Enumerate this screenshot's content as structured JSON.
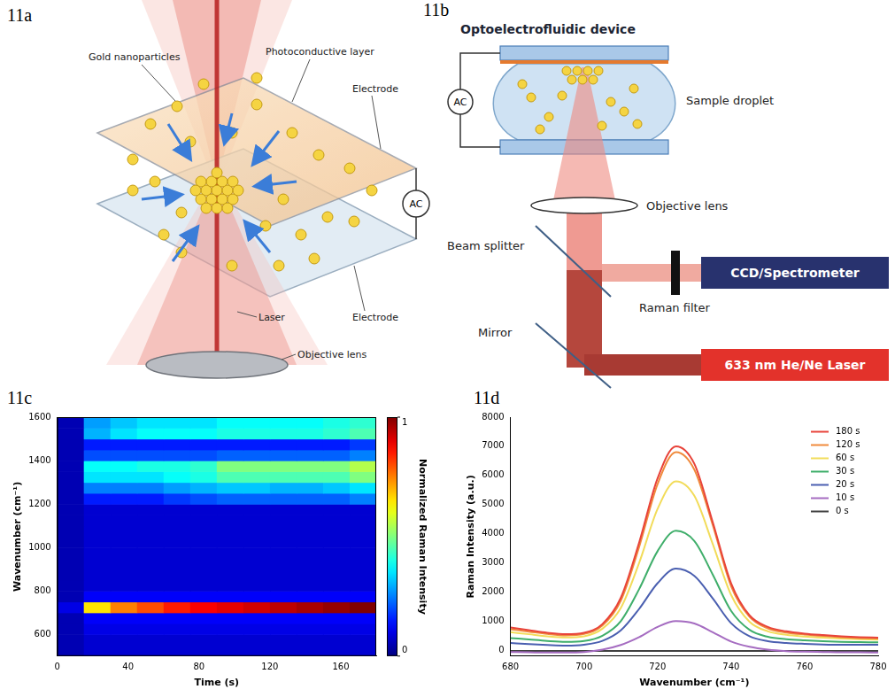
{
  "diagram_a": {
    "panel": "11a",
    "labels": {
      "nanoparticles": "Gold nanoparticles",
      "photoconductive": "Photoconductive layer",
      "electrode_top": "Electrode",
      "electrode_bottom": "Electrode",
      "source": "AC",
      "laser": "Laser",
      "lens": "Objective lens"
    }
  },
  "diagram_b": {
    "panel": "11b",
    "title": "Optoelectrofluidic device",
    "labels": {
      "source": "AC",
      "droplet": "Sample droplet",
      "lens": "Objective lens",
      "splitter": "Beam splitter",
      "filter": "Raman filter",
      "mirror": "Mirror",
      "detector": "CCD/Spectrometer",
      "laser": "633 nm He/Ne Laser"
    }
  },
  "chart_data": [
    {
      "type": "heatmap",
      "panel": "11c",
      "x_label": "Time (s)",
      "y_label": "Wavenumber (cm⁻¹)",
      "xlim": [
        0,
        180
      ],
      "xticks": [
        0,
        40,
        80,
        120,
        160
      ],
      "ylim": [
        500,
        1600
      ],
      "yticks": [
        600,
        800,
        1000,
        1200,
        1400,
        1600
      ],
      "grid": false,
      "x_bins": [
        0,
        15,
        30,
        45,
        60,
        75,
        90,
        105,
        120,
        135,
        150,
        165,
        180
      ],
      "y_bins": [
        500,
        550,
        600,
        650,
        700,
        750,
        800,
        850,
        900,
        950,
        1000,
        1050,
        1100,
        1150,
        1200,
        1250,
        1300,
        1350,
        1400,
        1450,
        1500,
        1550,
        1600
      ],
      "cells": [
        [
          0.05,
          0.08,
          0.08,
          0.08,
          0.08,
          0.08,
          0.08,
          0.08,
          0.08,
          0.08,
          0.08,
          0.08
        ],
        [
          0.05,
          0.08,
          0.08,
          0.08,
          0.08,
          0.08,
          0.08,
          0.08,
          0.08,
          0.08,
          0.08,
          0.08
        ],
        [
          0.05,
          0.1,
          0.1,
          0.1,
          0.1,
          0.1,
          0.1,
          0.1,
          0.1,
          0.1,
          0.1,
          0.1
        ],
        [
          0.05,
          0.12,
          0.12,
          0.12,
          0.12,
          0.12,
          0.12,
          0.12,
          0.12,
          0.12,
          0.12,
          0.12
        ],
        [
          0.1,
          0.65,
          0.75,
          0.8,
          0.85,
          0.88,
          0.9,
          0.92,
          0.94,
          0.96,
          0.98,
          1.0
        ],
        [
          0.05,
          0.12,
          0.12,
          0.12,
          0.12,
          0.12,
          0.12,
          0.12,
          0.12,
          0.12,
          0.12,
          0.12
        ],
        [
          0.05,
          0.08,
          0.08,
          0.08,
          0.08,
          0.08,
          0.08,
          0.08,
          0.08,
          0.08,
          0.08,
          0.08
        ],
        [
          0.05,
          0.08,
          0.08,
          0.08,
          0.08,
          0.08,
          0.08,
          0.08,
          0.08,
          0.08,
          0.08,
          0.08
        ],
        [
          0.05,
          0.08,
          0.08,
          0.08,
          0.08,
          0.08,
          0.08,
          0.08,
          0.08,
          0.08,
          0.08,
          0.08
        ],
        [
          0.05,
          0.08,
          0.08,
          0.08,
          0.08,
          0.08,
          0.08,
          0.08,
          0.08,
          0.08,
          0.08,
          0.08
        ],
        [
          0.05,
          0.08,
          0.08,
          0.08,
          0.08,
          0.08,
          0.08,
          0.08,
          0.08,
          0.08,
          0.08,
          0.08
        ],
        [
          0.05,
          0.08,
          0.08,
          0.08,
          0.08,
          0.08,
          0.08,
          0.08,
          0.08,
          0.08,
          0.08,
          0.08
        ],
        [
          0.05,
          0.08,
          0.08,
          0.08,
          0.08,
          0.08,
          0.08,
          0.08,
          0.08,
          0.08,
          0.08,
          0.08
        ],
        [
          0.05,
          0.08,
          0.08,
          0.08,
          0.08,
          0.08,
          0.08,
          0.08,
          0.08,
          0.08,
          0.08,
          0.08
        ],
        [
          0.05,
          0.15,
          0.15,
          0.15,
          0.18,
          0.2,
          0.22,
          0.22,
          0.22,
          0.22,
          0.22,
          0.25
        ],
        [
          0.05,
          0.25,
          0.25,
          0.25,
          0.28,
          0.3,
          0.32,
          0.32,
          0.3,
          0.3,
          0.32,
          0.35
        ],
        [
          0.05,
          0.35,
          0.35,
          0.35,
          0.38,
          0.4,
          0.45,
          0.45,
          0.45,
          0.45,
          0.45,
          0.5
        ],
        [
          0.05,
          0.38,
          0.38,
          0.4,
          0.4,
          0.42,
          0.5,
          0.5,
          0.5,
          0.5,
          0.5,
          0.55
        ],
        [
          0.05,
          0.2,
          0.2,
          0.2,
          0.2,
          0.2,
          0.22,
          0.22,
          0.22,
          0.22,
          0.22,
          0.25
        ],
        [
          0.05,
          0.15,
          0.15,
          0.15,
          0.15,
          0.15,
          0.15,
          0.15,
          0.15,
          0.15,
          0.15,
          0.18
        ],
        [
          0.05,
          0.3,
          0.35,
          0.38,
          0.38,
          0.38,
          0.4,
          0.4,
          0.4,
          0.4,
          0.42,
          0.45
        ],
        [
          0.05,
          0.28,
          0.32,
          0.35,
          0.35,
          0.35,
          0.38,
          0.38,
          0.38,
          0.38,
          0.4,
          0.42
        ]
      ],
      "colorbar": {
        "label": "Normalized Raman Intensity",
        "range": [
          0,
          1
        ],
        "ticks": [
          0,
          1
        ]
      }
    },
    {
      "type": "line",
      "panel": "11d",
      "x_label": "Wavenumber (cm⁻¹)",
      "y_label": "Raman Intensity (a.u.)",
      "x": [
        680,
        685,
        690,
        695,
        700,
        705,
        710,
        715,
        720,
        725,
        730,
        735,
        740,
        745,
        750,
        755,
        760,
        765,
        770,
        775,
        780
      ],
      "xlim": [
        680,
        780
      ],
      "xticks": [
        680,
        700,
        720,
        740,
        760,
        780
      ],
      "ylim": [
        -200,
        8000
      ],
      "yticks": [
        0,
        1000,
        2000,
        3000,
        4000,
        5000,
        6000,
        7000,
        8000
      ],
      "grid": false,
      "legend": "upper right",
      "series": [
        {
          "name": "180 s",
          "color": "#e8433a",
          "values": [
            780,
            690,
            600,
            550,
            600,
            900,
            1800,
            3700,
            5900,
            7000,
            6400,
            4400,
            2300,
            1200,
            800,
            650,
            570,
            520,
            480,
            450,
            430
          ]
        },
        {
          "name": "120 s",
          "color": "#f08a3c",
          "values": [
            720,
            640,
            560,
            510,
            560,
            850,
            1700,
            3550,
            5700,
            6800,
            6200,
            4300,
            2200,
            1150,
            750,
            610,
            540,
            490,
            450,
            420,
            400
          ]
        },
        {
          "name": "60 s",
          "color": "#f2dc5a",
          "values": [
            620,
            550,
            480,
            440,
            480,
            740,
            1450,
            3000,
            4850,
            5800,
            5300,
            3650,
            1900,
            980,
            650,
            530,
            470,
            430,
            400,
            380,
            360
          ]
        },
        {
          "name": "30 s",
          "color": "#3fae6a",
          "values": [
            420,
            370,
            320,
            290,
            320,
            500,
            1000,
            2100,
            3400,
            4100,
            3750,
            2600,
            1350,
            700,
            460,
            380,
            340,
            310,
            290,
            280,
            270
          ]
        },
        {
          "name": "20 s",
          "color": "#4a5fb0",
          "values": [
            250,
            210,
            180,
            160,
            190,
            320,
            680,
            1420,
            2300,
            2800,
            2550,
            1780,
            930,
            480,
            310,
            250,
            220,
            200,
            190,
            190,
            190
          ]
        },
        {
          "name": "10 s",
          "color": "#a56cc1",
          "values": [
            -60,
            -70,
            -80,
            -80,
            -60,
            20,
            180,
            450,
            800,
            1000,
            920,
            620,
            300,
            120,
            20,
            -30,
            -50,
            -60,
            -70,
            -70,
            -80
          ]
        },
        {
          "name": "0 s",
          "color": "#404040",
          "values": [
            -20,
            -20,
            -20,
            -20,
            -20,
            -20,
            -20,
            -20,
            -20,
            -20,
            -20,
            -20,
            -20,
            -20,
            -20,
            -20,
            -20,
            -20,
            -20,
            -20,
            -20
          ]
        }
      ]
    }
  ]
}
